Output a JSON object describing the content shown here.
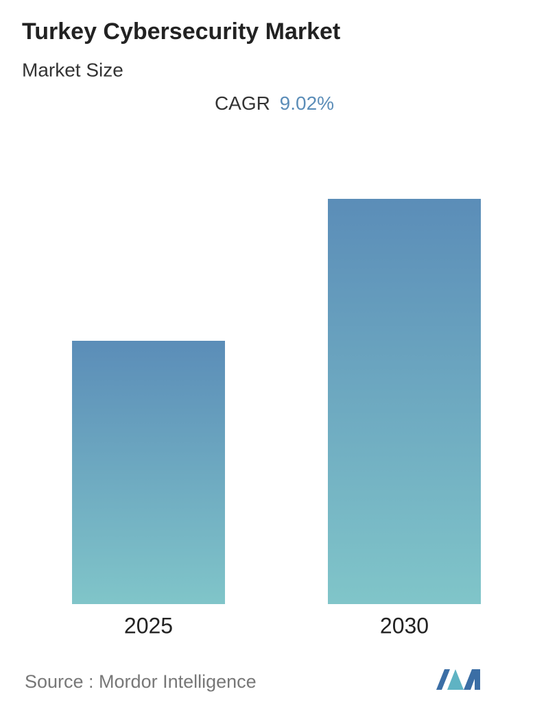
{
  "chart_data": {
    "type": "bar",
    "title": "Turkey Cybersecurity Market",
    "subtitle": "Market Size",
    "cagr_label": "CAGR",
    "cagr_value": "9.02%",
    "categories": [
      "2025",
      "2030"
    ],
    "values": [
      384,
      591
    ],
    "ylim": [
      0,
      591
    ],
    "color_top": "#5b8db8",
    "color_bottom": "#80c5c9",
    "source": "Source :  Mordor Intelligence"
  }
}
